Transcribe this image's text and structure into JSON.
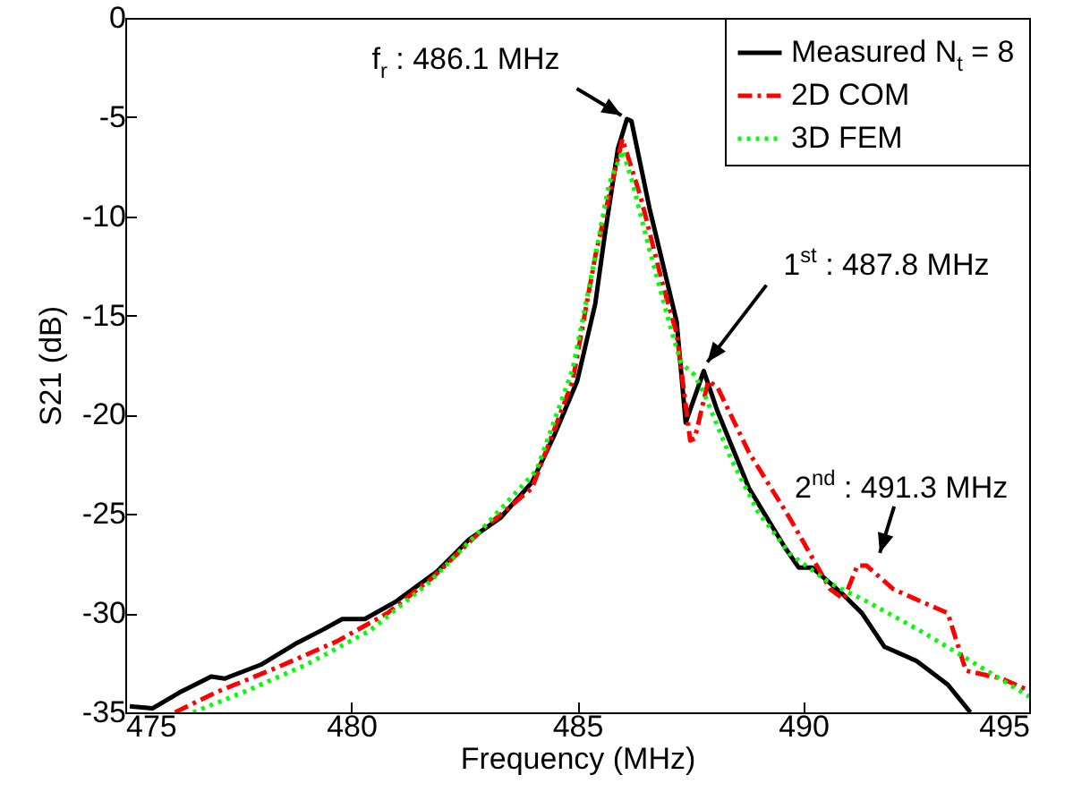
{
  "chart_data": {
    "type": "line",
    "xlabel": "Frequency (MHz)",
    "ylabel": "S21 (dB)",
    "xlim": [
      475,
      495
    ],
    "xticks": [
      475,
      480,
      485,
      490,
      495
    ],
    "ylim": [
      -35,
      0
    ],
    "yticks": [
      -35,
      -30,
      -25,
      -20,
      -15,
      -10,
      -5,
      0
    ],
    "grid": false,
    "legend": "top right",
    "marker": "none",
    "series": [
      {
        "name": "Measured N$_{t}$ = 8",
        "color": "#000000",
        "line_style": "solid",
        "x": [
          475.1,
          475.6,
          476.2,
          476.9,
          477.2,
          478.0,
          478.8,
          479.4,
          479.8,
          480.3,
          481.0,
          481.9,
          482.6,
          483.3,
          484.0,
          484.5,
          485.0,
          485.4,
          485.6,
          485.9,
          486.1,
          486.2,
          486.6,
          487.2,
          487.4,
          487.8,
          488.1,
          488.8,
          489.6,
          489.9,
          490.2,
          490.9,
          491.3,
          491.8,
          492.5,
          493.2,
          493.7
        ],
        "values": [
          -34.7,
          -34.8,
          -34.0,
          -33.2,
          -33.3,
          -32.6,
          -31.5,
          -30.8,
          -30.3,
          -30.3,
          -29.4,
          -27.9,
          -26.3,
          -25.2,
          -23.4,
          -21.0,
          -18.3,
          -14.4,
          -11.1,
          -6.6,
          -5.1,
          -5.2,
          -9.6,
          -15.3,
          -20.4,
          -17.8,
          -19.8,
          -23.7,
          -26.7,
          -27.7,
          -27.7,
          -29.1,
          -30.0,
          -31.7,
          -32.4,
          -33.6,
          -35.0
        ]
      },
      {
        "name": "2D COM",
        "color": "#ff0000",
        "line_style": "dashdot",
        "x": [
          476.1,
          477.0,
          478.4,
          479.7,
          480.8,
          481.8,
          482.9,
          484.0,
          484.9,
          485.4,
          485.7,
          486.0,
          486.4,
          486.9,
          487.2,
          487.5,
          487.6,
          487.9,
          488.1,
          488.8,
          489.7,
          490.6,
          490.9,
          491.2,
          491.4,
          492.0,
          492.9,
          493.2,
          493.6,
          494.4,
          495.0
        ],
        "values": [
          -35.0,
          -34.0,
          -32.7,
          -31.4,
          -30.0,
          -28.2,
          -25.8,
          -23.7,
          -18.3,
          -12.0,
          -9.0,
          -6.1,
          -9.0,
          -13.5,
          -15.9,
          -21.3,
          -21.2,
          -18.3,
          -18.6,
          -21.9,
          -25.2,
          -28.8,
          -29.3,
          -27.6,
          -27.6,
          -28.8,
          -29.7,
          -30.0,
          -32.9,
          -33.3,
          -33.9
        ]
      },
      {
        "name": "3D FEM",
        "color": "#00ff00",
        "line_style": "dotted",
        "x": [
          476.5,
          477.7,
          479.0,
          480.4,
          481.7,
          483.0,
          484.1,
          484.9,
          485.4,
          485.7,
          486.0,
          486.2,
          486.6,
          487.1,
          487.3,
          487.6,
          487.8,
          488.4,
          489.0,
          489.7,
          490.6,
          491.4,
          492.6,
          493.7,
          495.0
        ],
        "values": [
          -35.0,
          -33.9,
          -32.6,
          -30.9,
          -28.5,
          -25.5,
          -22.8,
          -17.7,
          -12.0,
          -8.4,
          -6.7,
          -8.1,
          -11.7,
          -15.9,
          -17.4,
          -18.0,
          -18.9,
          -22.2,
          -24.9,
          -27.0,
          -28.5,
          -29.4,
          -30.9,
          -32.4,
          -34.2
        ]
      }
    ],
    "annotations": [
      {
        "text": "f$_{r}$ : 486.1 MHz",
        "x": 486.1,
        "y": -5.1
      },
      {
        "text": "1$^{st}$ : 487.8 MHz",
        "x": 487.8,
        "y": -17.8
      },
      {
        "text": "2$^{nd}$ : 491.3 MHz",
        "x": 491.3,
        "y": -27.6
      }
    ]
  }
}
